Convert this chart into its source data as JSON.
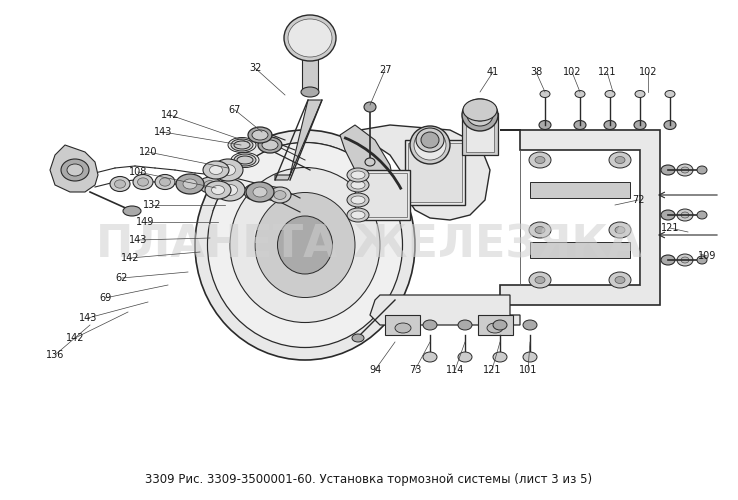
{
  "bg_color": "#ffffff",
  "title_text": "3309 Рис. 3309-3500001-60. Установка тормозной системы (лист 3 из 5)",
  "watermark": "ПЛАНЕТА ЖЕЛЕЗЯКА",
  "watermark_color": "#d0d0d0",
  "title_fontsize": 8.5,
  "watermark_fontsize": 32,
  "lc": "#2a2a2a",
  "lc2": "#555555",
  "fc_light": "#e8e8e8",
  "fc_mid": "#cccccc",
  "fc_dark": "#aaaaaa",
  "label_fs": 7,
  "label_color": "#1a1a1a"
}
